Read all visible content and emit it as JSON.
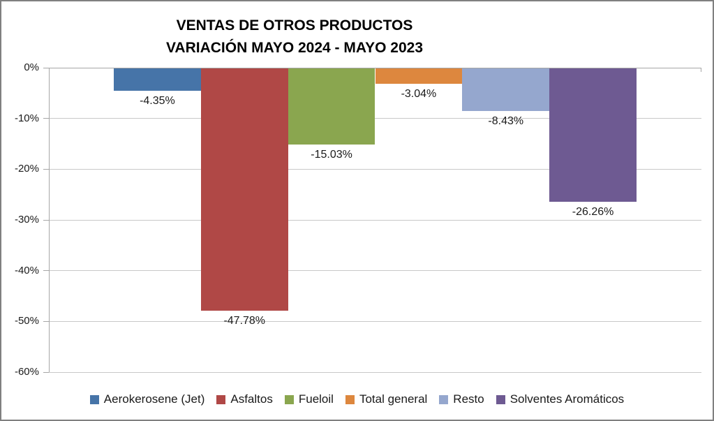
{
  "chart_data": {
    "type": "bar",
    "title": "VENTAS DE OTROS PRODUCTOS",
    "subtitle": "VARIACIÓN MAYO 2024 - MAYO 2023",
    "categories": [
      "Aerokerosene (Jet)",
      "Asfaltos",
      "Fueloil",
      "Total general",
      "Resto",
      "Solventes Aromáticos"
    ],
    "values": [
      -4.35,
      -47.78,
      -15.03,
      -3.04,
      -8.43,
      -26.26
    ],
    "data_labels": [
      "-4.35%",
      "-47.78%",
      "-15.03%",
      "-3.04%",
      "-8.43%",
      "-26.26%"
    ],
    "series_colors": [
      "#4674A8",
      "#B04846",
      "#8AA64F",
      "#DD873E",
      "#95A7CE",
      "#6E5A92"
    ],
    "ylim": [
      -60,
      0
    ],
    "yticks": [
      0,
      -10,
      -20,
      -30,
      -40,
      -50,
      -60
    ],
    "ytick_labels": [
      "0%",
      "-10%",
      "-20%",
      "-30%",
      "-40%",
      "-50%",
      "-60%"
    ],
    "grid": true,
    "legend_position": "bottom",
    "legend": [
      "Aerokerosene (Jet)",
      "Asfaltos",
      "Fueloil",
      "Total general",
      "Resto",
      "Solventes Aromáticos"
    ],
    "frame_colors": {
      "gridline": "#C8C8C8",
      "axis": "#A6A6A6",
      "chart_border": "#808080",
      "label_text": "#1A1A1A",
      "title_text": "#000000"
    }
  }
}
